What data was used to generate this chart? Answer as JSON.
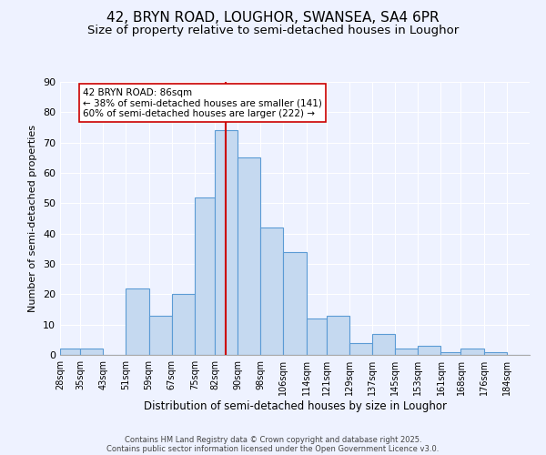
{
  "title": "42, BRYN ROAD, LOUGHOR, SWANSEA, SA4 6PR",
  "subtitle": "Size of property relative to semi-detached houses in Loughor",
  "xlabel": "Distribution of semi-detached houses by size in Loughor",
  "ylabel": "Number of semi-detached properties",
  "bin_labels": [
    "28sqm",
    "35sqm",
    "43sqm",
    "51sqm",
    "59sqm",
    "67sqm",
    "75sqm",
    "82sqm",
    "90sqm",
    "98sqm",
    "106sqm",
    "114sqm",
    "121sqm",
    "129sqm",
    "137sqm",
    "145sqm",
    "153sqm",
    "161sqm",
    "168sqm",
    "176sqm",
    "184sqm"
  ],
  "bin_edges": [
    28,
    35,
    43,
    51,
    59,
    67,
    75,
    82,
    90,
    98,
    106,
    114,
    121,
    129,
    137,
    145,
    153,
    161,
    168,
    176,
    184
  ],
  "bar_heights": [
    2,
    2,
    0,
    22,
    13,
    20,
    52,
    74,
    65,
    42,
    34,
    12,
    13,
    4,
    7,
    2,
    3,
    1,
    2,
    1,
    0
  ],
  "bar_color": "#c5d9f0",
  "bar_edge_color": "#5b9bd5",
  "vline_x": 86,
  "vline_color": "#cc0000",
  "annotation_title": "42 BRYN ROAD: 86sqm",
  "annotation_line1": "← 38% of semi-detached houses are smaller (141)",
  "annotation_line2": "60% of semi-detached houses are larger (222) →",
  "annotation_box_color": "#ffffff",
  "annotation_box_edge": "#cc0000",
  "ylim": [
    0,
    90
  ],
  "yticks": [
    0,
    10,
    20,
    30,
    40,
    50,
    60,
    70,
    80,
    90
  ],
  "background_color": "#eef2ff",
  "footer1": "Contains HM Land Registry data © Crown copyright and database right 2025.",
  "footer2": "Contains public sector information licensed under the Open Government Licence v3.0.",
  "title_fontsize": 11,
  "subtitle_fontsize": 9.5
}
